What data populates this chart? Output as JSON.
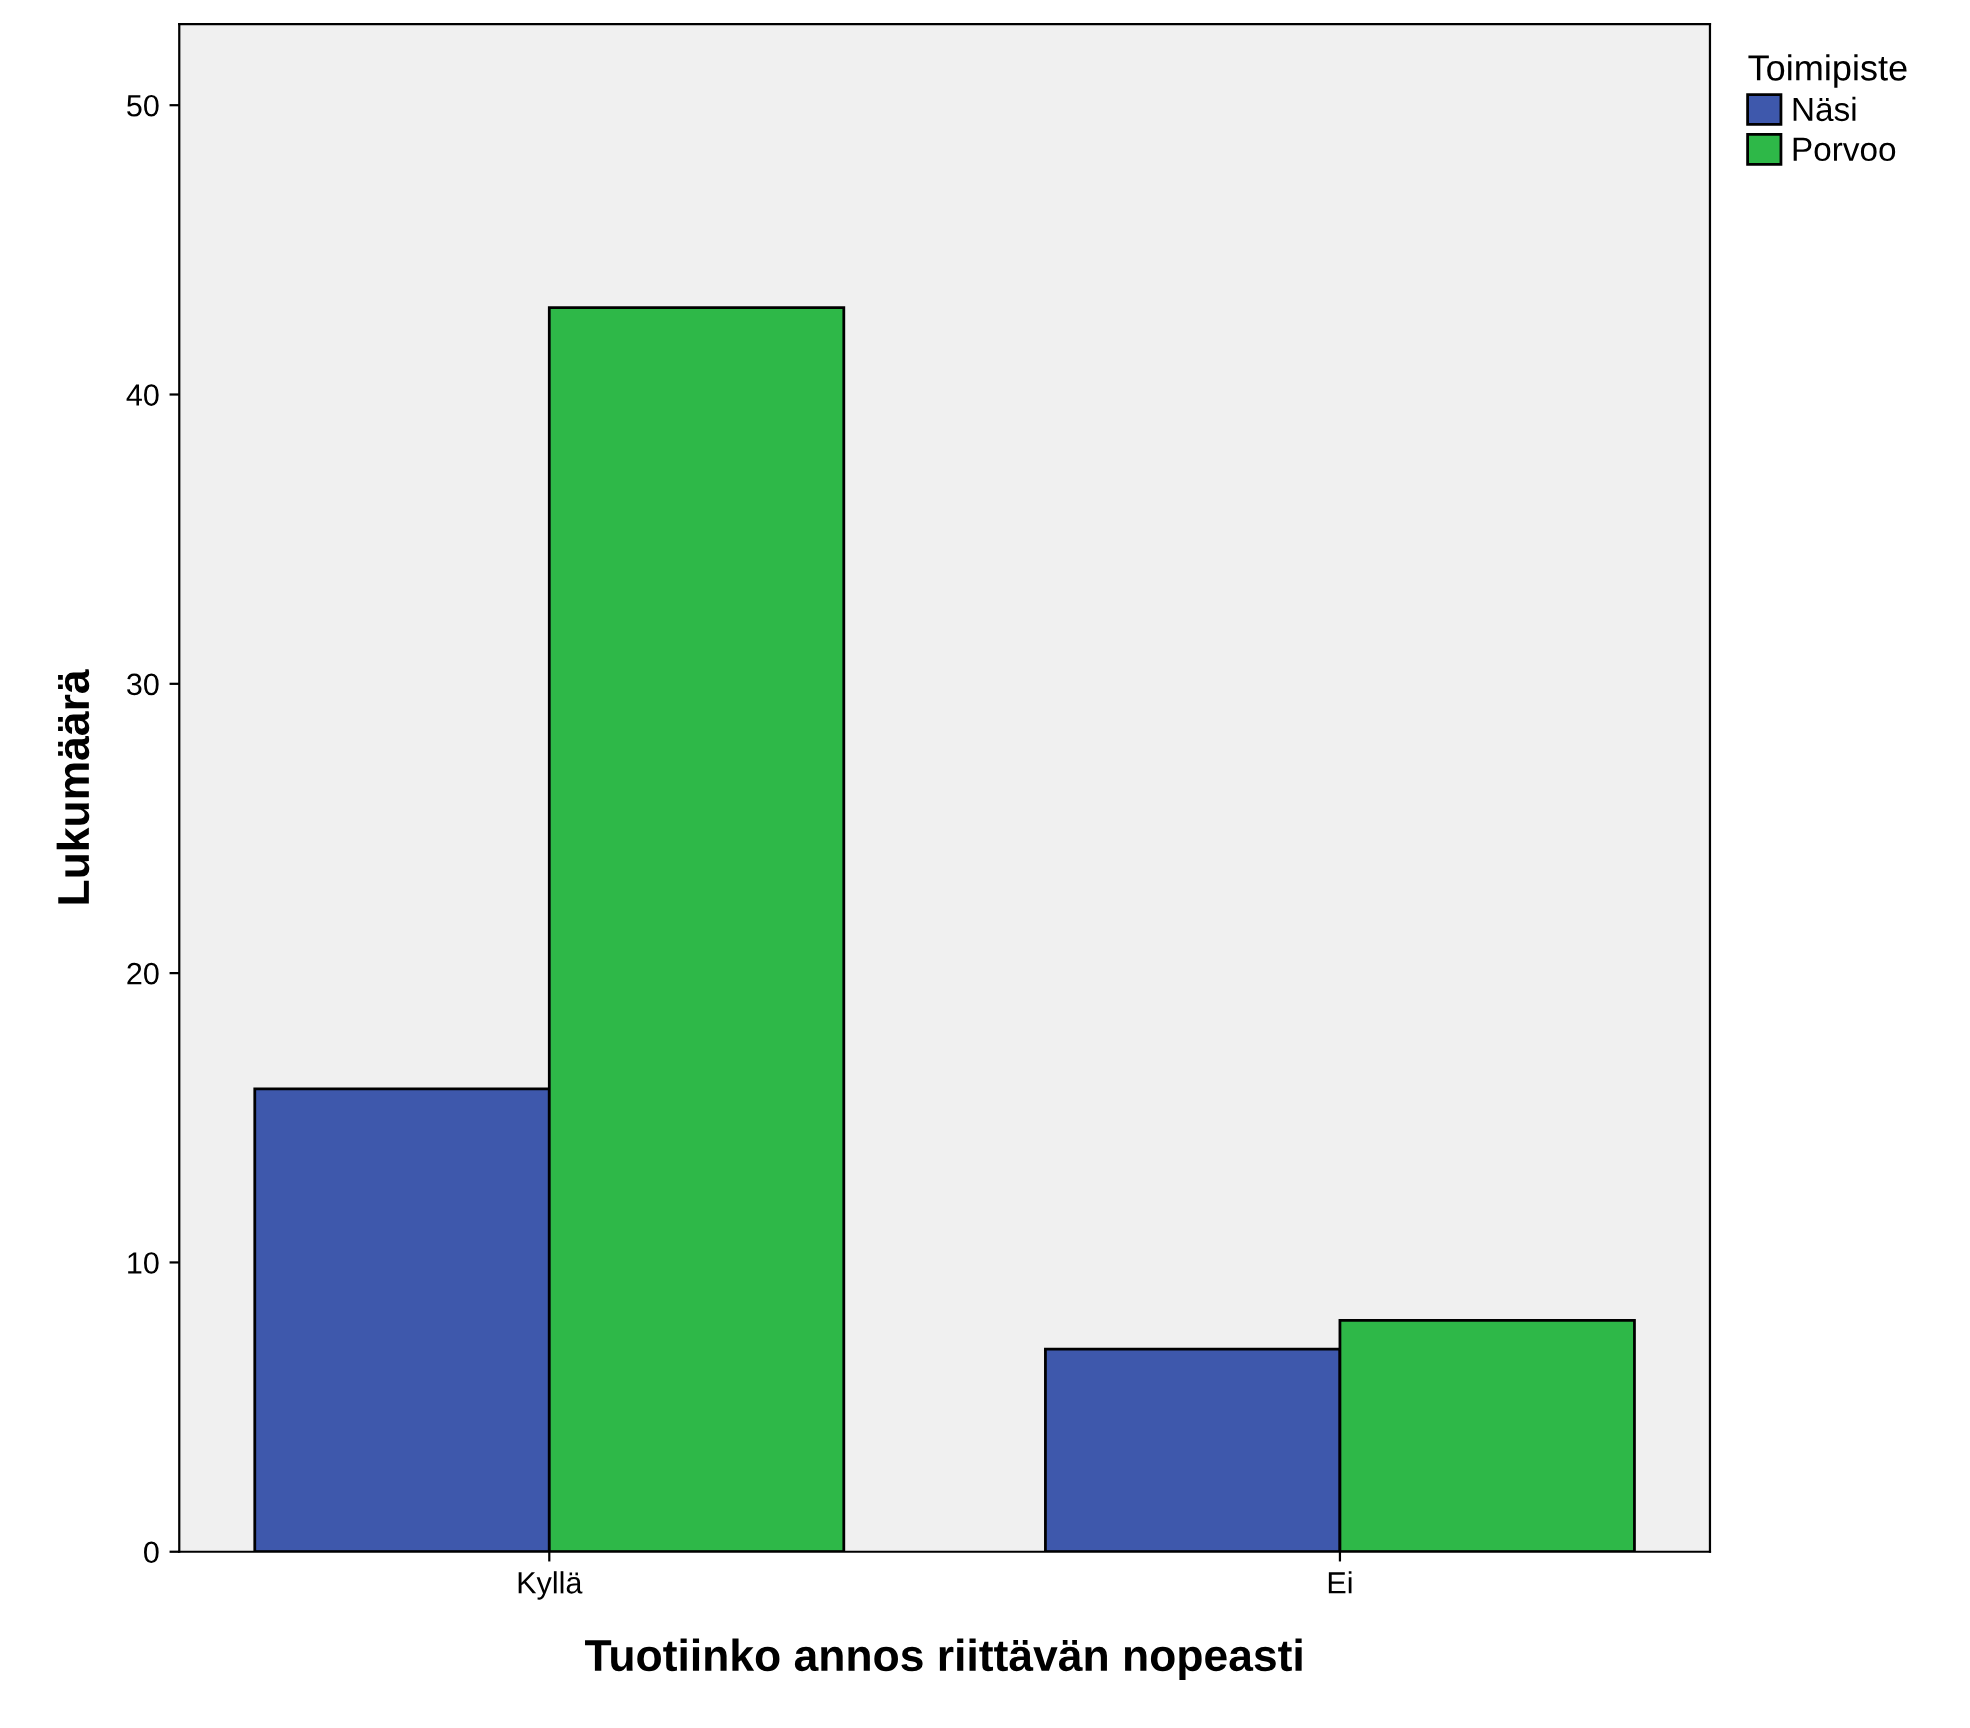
{
  "chart_data": {
    "type": "bar",
    "xlabel": "Tuotiinko annos riittävän nopeasti",
    "ylabel": "Lukumäärä",
    "legend_title": "Toimipiste",
    "categories": [
      "Kyllä",
      "Ei"
    ],
    "series": [
      {
        "name": "Näsi",
        "color": "#3e58ac",
        "values": [
          16,
          7
        ]
      },
      {
        "name": "Porvoo",
        "color": "#2eb848",
        "values": [
          43,
          8
        ]
      }
    ],
    "ylim": [
      0,
      52.8
    ],
    "yticks": [
      0,
      10,
      20,
      30,
      40,
      50
    ],
    "grid": false,
    "legend": "top right"
  }
}
